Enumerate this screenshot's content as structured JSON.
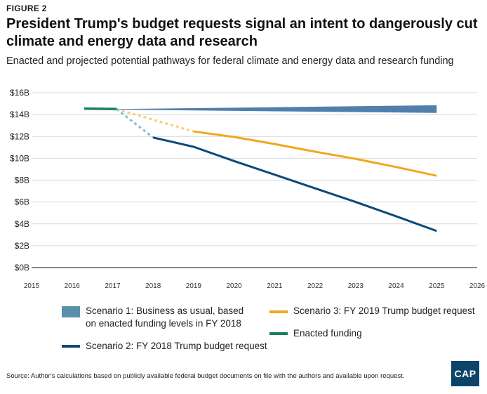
{
  "header": {
    "figure_label": "FIGURE 2",
    "title": "President Trump's budget requests signal an intent to dangerously cut climate and energy data and research",
    "subtitle": "Enacted and projected potential pathways for federal climate and energy data and research funding"
  },
  "footer": {
    "source": "Source: Author's calculations based on publicly available federal budget documents on file with the authors and available upon request.",
    "logo_text": "CAP"
  },
  "legend": {
    "scenario1": "Scenario 1: Business as usual, based on enacted funding levels in FY 2018",
    "scenario2": "Scenario 2: FY 2018 Trump budget request",
    "scenario3": "Scenario 3: FY 2019 Trump budget request",
    "enacted": "Enacted funding"
  },
  "colors": {
    "scenario1_band": "#4f7fad",
    "scenario1_swatch": "#5b90ad",
    "scenario2": "#0c4a78",
    "scenario2_dashed": "#7fc0cf",
    "scenario3": "#f2a71c",
    "scenario3_dashed": "#f7cf72",
    "enacted": "#1b7f5b",
    "grid": "#d9d9d9",
    "axis": "#444444"
  },
  "chart_data": {
    "type": "line",
    "x_ticks": [
      2015,
      2016,
      2017,
      2018,
      2019,
      2020,
      2021,
      2022,
      2023,
      2024,
      2025,
      2026
    ],
    "y_ticks": [
      0,
      2,
      4,
      6,
      8,
      10,
      12,
      14,
      16
    ],
    "y_tick_labels": [
      "$0B",
      "$2B",
      "$4B",
      "$6B",
      "$8B",
      "$10B",
      "$12B",
      "$14B",
      "$16B"
    ],
    "xlim": [
      2015,
      2026
    ],
    "ylim": [
      0,
      16
    ],
    "grid": true,
    "series": [
      {
        "key": "enacted",
        "points": [
          [
            2016.3,
            14.55
          ],
          [
            2017.1,
            14.5
          ]
        ],
        "style": "solid"
      },
      {
        "key": "scenario1",
        "band_upper": [
          [
            2017.1,
            14.5
          ],
          [
            2025,
            14.85
          ]
        ],
        "band_lower": [
          [
            2017.1,
            14.45
          ],
          [
            2025,
            14.15
          ]
        ],
        "style": "band"
      },
      {
        "key": "scenario2",
        "projected_points": [
          [
            2017.1,
            14.5
          ],
          [
            2018,
            11.9
          ]
        ],
        "points": [
          [
            2018,
            11.9
          ],
          [
            2019,
            11.05
          ],
          [
            2020,
            9.75
          ],
          [
            2021,
            8.5
          ],
          [
            2022,
            7.25
          ],
          [
            2023,
            6.0
          ],
          [
            2024,
            4.7
          ],
          [
            2025,
            3.35
          ]
        ],
        "style": "solid"
      },
      {
        "key": "scenario3",
        "projected_points": [
          [
            2017.1,
            14.5
          ],
          [
            2019,
            12.45
          ]
        ],
        "points": [
          [
            2019,
            12.45
          ],
          [
            2020,
            11.95
          ],
          [
            2021,
            11.3
          ],
          [
            2022,
            10.6
          ],
          [
            2023,
            9.95
          ],
          [
            2024,
            9.2
          ],
          [
            2025,
            8.4
          ]
        ],
        "style": "solid"
      }
    ]
  }
}
